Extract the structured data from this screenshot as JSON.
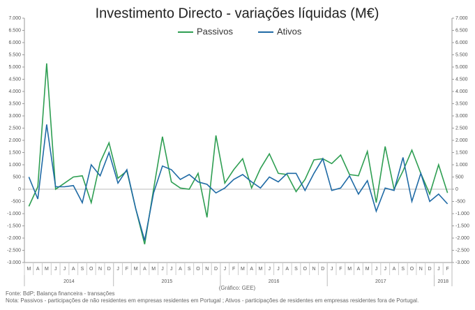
{
  "chart_data": {
    "type": "line",
    "title": "Investimento Directo - variações líquidas (M€)",
    "category_groups": [
      {
        "label": "2014",
        "categories": [
          "M",
          "A",
          "M",
          "J",
          "J",
          "A",
          "S",
          "O",
          "N",
          "D"
        ]
      },
      {
        "label": "2015",
        "categories": [
          "J",
          "F",
          "M",
          "A",
          "M",
          "J",
          "J",
          "A",
          "S",
          "O",
          "N",
          "D"
        ]
      },
      {
        "label": "2016",
        "categories": [
          "J",
          "F",
          "M",
          "A",
          "M",
          "J",
          "J",
          "A",
          "S",
          "O",
          "N",
          "D"
        ]
      },
      {
        "label": "2017",
        "categories": [
          "J",
          "F",
          "M",
          "A",
          "M",
          "J",
          "J",
          "A",
          "S",
          "O",
          "N",
          "D"
        ]
      },
      {
        "label": "2018",
        "categories": [
          "J",
          "F"
        ]
      }
    ],
    "series": [
      {
        "name": "Passivos",
        "color": "#2e9e52",
        "values": [
          -700,
          100,
          5150,
          0,
          250,
          500,
          550,
          -550,
          1100,
          1900,
          450,
          750,
          -800,
          -2250,
          0,
          2150,
          300,
          50,
          0,
          650,
          -1150,
          2200,
          250,
          800,
          1250,
          50,
          850,
          1450,
          650,
          600,
          -100,
          400,
          1200,
          1250,
          1050,
          1400,
          600,
          550,
          1550,
          -550,
          1750,
          0,
          750,
          1600,
          650,
          -200,
          1000,
          -150
        ]
      },
      {
        "name": "Ativos",
        "color": "#1f6aa5",
        "values": [
          500,
          -400,
          2650,
          100,
          100,
          150,
          -550,
          1000,
          550,
          1500,
          250,
          800,
          -800,
          -2100,
          -150,
          950,
          800,
          400,
          600,
          300,
          200,
          -150,
          50,
          400,
          600,
          300,
          50,
          500,
          300,
          650,
          650,
          -50,
          650,
          1250,
          -50,
          50,
          550,
          -200,
          350,
          -900,
          50,
          -50,
          1300,
          -500,
          650,
          -500,
          -200,
          -600
        ]
      }
    ],
    "ylim": [
      -3000,
      7000
    ],
    "yticks": [
      {
        "value": 7000,
        "label": "7.000"
      },
      {
        "value": 6500,
        "label": "6.500"
      },
      {
        "value": 6000,
        "label": "6.000"
      },
      {
        "value": 5500,
        "label": "5.500"
      },
      {
        "value": 5000,
        "label": "5.000"
      },
      {
        "value": 4500,
        "label": "4.500"
      },
      {
        "value": 4000,
        "label": "4.000"
      },
      {
        "value": 3500,
        "label": "3.500"
      },
      {
        "value": 3000,
        "label": "3.000"
      },
      {
        "value": 2500,
        "label": "2.500"
      },
      {
        "value": 2000,
        "label": "2.000"
      },
      {
        "value": 1500,
        "label": "1.500"
      },
      {
        "value": 1000,
        "label": "1.000"
      },
      500,
      0,
      -500,
      {
        "value": -1000,
        "label": "-1.000"
      },
      {
        "value": -1500,
        "label": "-1.500"
      },
      {
        "value": -2000,
        "label": "-2.000"
      },
      {
        "value": -2500,
        "label": "-2.500"
      },
      {
        "value": -3000,
        "label": "-3.000"
      }
    ],
    "y2lim": [
      -3000,
      7000
    ],
    "y2ticks": [
      {
        "value": 7000,
        "label": "7.000"
      },
      {
        "value": 6500,
        "label": "6.500"
      },
      {
        "value": 6000,
        "label": "6.000"
      },
      {
        "value": 5500,
        "label": "5.500"
      },
      {
        "value": 5000,
        "label": "5.000"
      },
      {
        "value": 4500,
        "label": "4.500"
      },
      {
        "value": 4000,
        "label": "4.000"
      },
      {
        "value": 3500,
        "label": "3.500"
      },
      {
        "value": 3000,
        "label": "3.000"
      },
      {
        "value": 2500,
        "label": "2.500"
      },
      {
        "value": 2000,
        "label": "2.000"
      },
      {
        "value": 1500,
        "label": "1.500"
      },
      {
        "value": 1000,
        "label": "1.000"
      },
      500,
      0,
      -500,
      {
        "value": -1000,
        "label": "-1.000"
      },
      {
        "value": -1500,
        "label": "-1.500"
      },
      {
        "value": -2000,
        "label": "-2.000"
      },
      {
        "value": -2500,
        "label": "-2.500"
      },
      {
        "value": -3000,
        "label": "-3.000"
      }
    ],
    "legend": "top",
    "source": "Fonte: BdP; Balança financeira - transações",
    "credit": "(Gráfico: GEE)",
    "note": "Nota: Passivos - participações de não residentes em empresas residentes em Portugal ; Ativos - participações de residentes em empresas residentes fora de Portugal."
  }
}
